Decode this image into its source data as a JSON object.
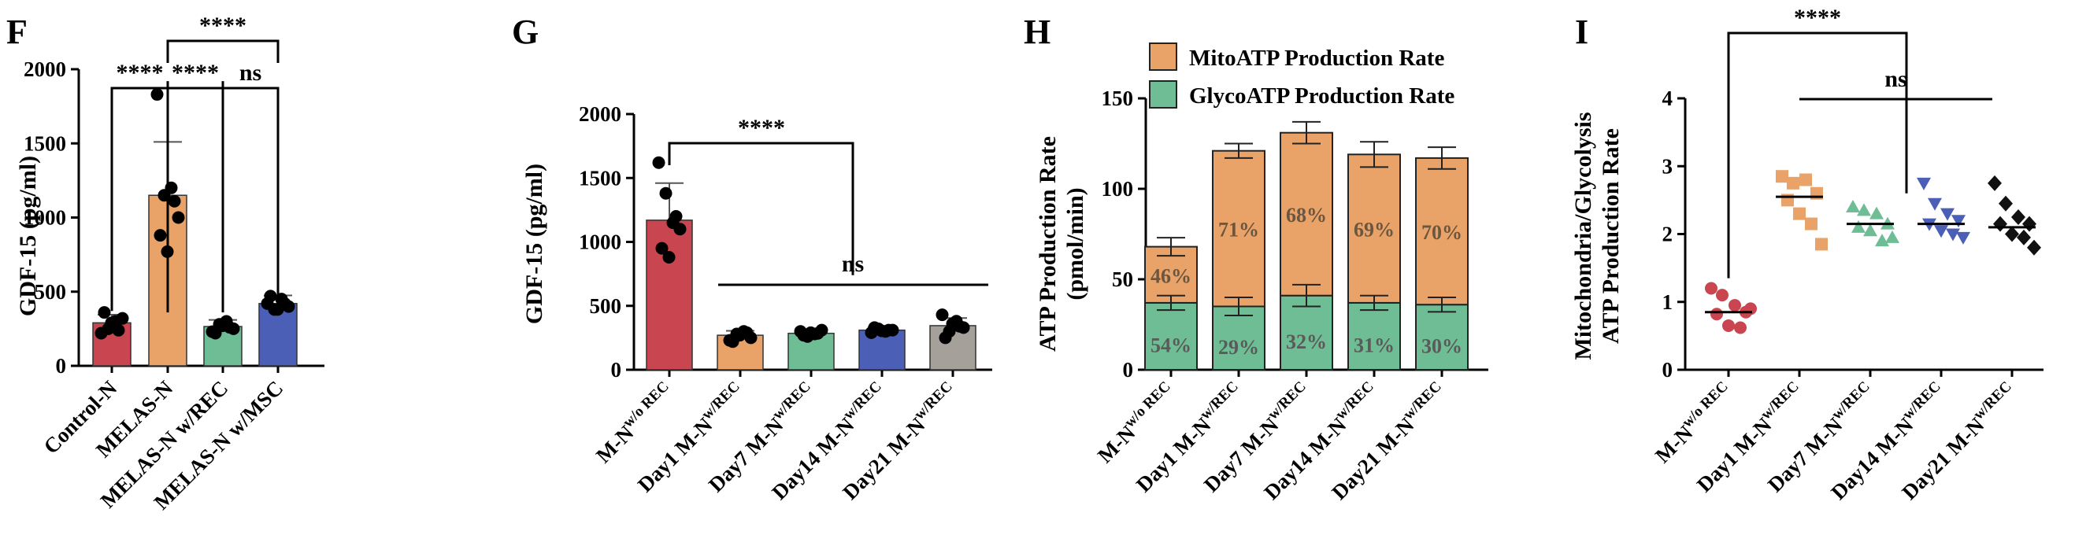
{
  "chart_data": [
    {
      "panel": "F",
      "type": "bar",
      "ylabel": "GDF-15 (pg/ml)",
      "ylim": [
        0,
        2000
      ],
      "yticks": [
        "0",
        "500",
        "1000",
        "1500",
        "2000"
      ],
      "categories": [
        "Control-N",
        "MELAS-N",
        "MELAS-N w/REC",
        "MELAS-N w/MSC"
      ],
      "values": [
        290,
        1150,
        265,
        420
      ],
      "errors": [
        55,
        360,
        45,
        55
      ],
      "colors": [
        "#c9454f",
        "#e9a369",
        "#6ebd95",
        "#4a5fb5"
      ],
      "points": [
        [
          220,
          250,
          300,
          320,
          360,
          290,
          240
        ],
        [
          1830,
          1150,
          1200,
          1000,
          880,
          770,
          1110
        ],
        [
          230,
          280,
          300,
          250,
          220,
          270,
          260
        ],
        [
          420,
          380,
          450,
          400,
          470,
          380,
          420
        ]
      ],
      "brackets": [
        {
          "from": 0,
          "to": 1,
          "label": "****"
        },
        {
          "from": 1,
          "to": 2,
          "label": "****"
        },
        {
          "from": 2,
          "to": 3,
          "label": "ns"
        },
        {
          "from": 1,
          "to": 3,
          "label": "****"
        }
      ]
    },
    {
      "panel": "G",
      "type": "bar",
      "ylabel": "GDF-15 (pg/ml)",
      "ylim": [
        0,
        2000
      ],
      "yticks": [
        "0",
        "500",
        "1000",
        "1500",
        "2000"
      ],
      "categories": [
        {
          "base": "M-N",
          "sup": "w/o REC"
        },
        {
          "base": "Day1 M-N",
          "sup": "w/REC"
        },
        {
          "base": "Day7 M-N",
          "sup": "w/REC"
        },
        {
          "base": "Day14 M-N",
          "sup": "w/REC"
        },
        {
          "base": "Day21 M-N",
          "sup": "w/REC"
        }
      ],
      "values": [
        1170,
        270,
        285,
        310,
        345
      ],
      "errors": [
        290,
        35,
        30,
        25,
        60
      ],
      "colors": [
        "#c9454f",
        "#e9a369",
        "#6ebd95",
        "#4a5fb5",
        "#a6a09b"
      ],
      "points": [
        [
          1620,
          1380,
          1150,
          1100,
          950,
          880,
          1200
        ],
        [
          230,
          280,
          300,
          250,
          220,
          270,
          290
        ],
        [
          300,
          260,
          280,
          310,
          270,
          290,
          285
        ],
        [
          290,
          320,
          300,
          310,
          330,
          305,
          310
        ],
        [
          430,
          300,
          380,
          330,
          250,
          360,
          340
        ]
      ],
      "brackets": [
        {
          "type": "single",
          "from": 0,
          "to": 3,
          "label": "****"
        },
        {
          "type": "line",
          "from": 1,
          "to": 4,
          "label": "ns"
        }
      ]
    },
    {
      "panel": "H",
      "type": "stacked-bar",
      "ylabel": "ATP Production Rate",
      "ylabel2": "(pmol/min)",
      "ylim": [
        0,
        150
      ],
      "yticks": [
        "0",
        "50",
        "100",
        "150"
      ],
      "categories": [
        {
          "base": "M-N",
          "sup": "w/o REC"
        },
        {
          "base": "Day1 M-N",
          "sup": "w/REC"
        },
        {
          "base": "Day7 M-N",
          "sup": "w/REC"
        },
        {
          "base": "Day14 M-N",
          "sup": "w/REC"
        },
        {
          "base": "Day21 M-N",
          "sup": "w/REC"
        }
      ],
      "series": [
        {
          "name": "GlycoATP Production Rate",
          "color": "#6ebd95",
          "values": [
            37,
            35,
            41,
            37,
            36
          ],
          "errors": [
            4,
            5,
            6,
            4,
            4
          ],
          "labels": [
            "54%",
            "29%",
            "32%",
            "31%",
            "30%"
          ]
        },
        {
          "name": "MitoATP Production Rate",
          "color": "#e9a369",
          "values": [
            31,
            86,
            90,
            82,
            81
          ],
          "errors": [
            5,
            4,
            6,
            7,
            6
          ],
          "labels": [
            "46%",
            "71%",
            "68%",
            "69%",
            "70%"
          ]
        }
      ],
      "legend": [
        "MitoATP Production Rate",
        "GlycoATP Production Rate"
      ]
    },
    {
      "panel": "I",
      "type": "scatter",
      "ylabel": "Mitochondria/Glycolysis",
      "ylabel2": "ATP Production Rate",
      "ylim": [
        0,
        4
      ],
      "yticks": [
        "0",
        "1",
        "2",
        "3",
        "4"
      ],
      "categories": [
        {
          "base": "M-N",
          "sup": "w/o REC"
        },
        {
          "base": "Day1 M-N",
          "sup": "w/REC"
        },
        {
          "base": "Day7 M-N",
          "sup": "w/REC"
        },
        {
          "base": "Day14 M-N",
          "sup": "w/REC"
        },
        {
          "base": "Day21 M-N",
          "sup": "w/REC"
        }
      ],
      "colors": [
        "#c9454f",
        "#e9a369",
        "#6ebd95",
        "#4a5fb5",
        "#111111"
      ],
      "markers": [
        "circle",
        "square",
        "triangle",
        "triangle-down",
        "diamond"
      ],
      "means": [
        0.85,
        2.55,
        2.15,
        2.15,
        2.1
      ],
      "points": [
        [
          1.2,
          1.1,
          0.95,
          0.85,
          0.82,
          0.65,
          0.62,
          0.9
        ],
        [
          2.85,
          2.75,
          2.8,
          2.6,
          2.5,
          2.3,
          2.15,
          1.85
        ],
        [
          2.4,
          2.35,
          2.3,
          2.15,
          2.1,
          2.05,
          1.9,
          1.95
        ],
        [
          2.75,
          2.45,
          2.3,
          2.2,
          2.15,
          2.05,
          2.0,
          1.95
        ],
        [
          2.75,
          2.45,
          2.25,
          2.15,
          2.15,
          2.0,
          1.95,
          1.8
        ]
      ],
      "brackets": [
        {
          "type": "single",
          "from": 0,
          "to": 2,
          "label": "****"
        },
        {
          "type": "line",
          "from": 1,
          "to": 4,
          "label": "ns"
        }
      ]
    }
  ]
}
